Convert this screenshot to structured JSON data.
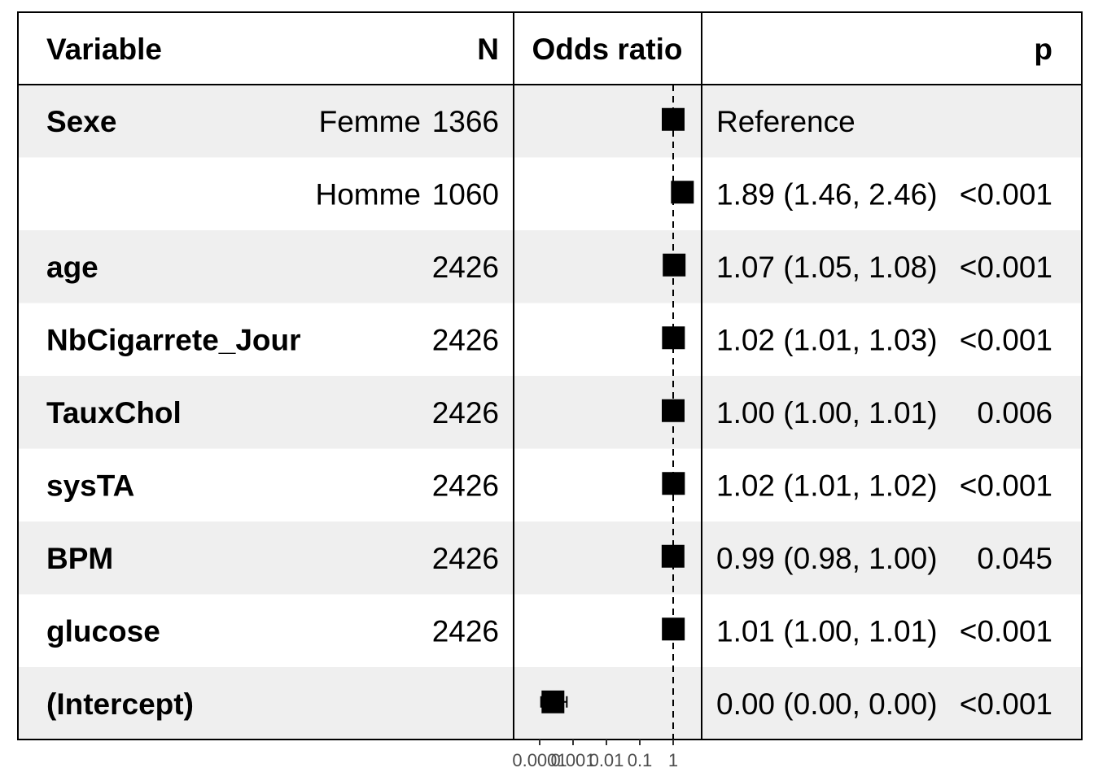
{
  "header": {
    "variable": "Variable",
    "n": "N",
    "odds_ratio": "Odds ratio",
    "p": "p"
  },
  "rows": [
    {
      "variable": "Sexe",
      "level": "Femme",
      "n": "1366",
      "ci_text": "Reference",
      "p": ""
    },
    {
      "variable": "",
      "level": "Homme",
      "n": "1060",
      "ci_text": "1.89 (1.46, 2.46)",
      "p": "<0.001"
    },
    {
      "variable": "age",
      "level": "",
      "n": "2426",
      "ci_text": "1.07 (1.05, 1.08)",
      "p": "<0.001"
    },
    {
      "variable": "NbCigarrete_Jour",
      "level": "",
      "n": "2426",
      "ci_text": "1.02 (1.01, 1.03)",
      "p": "<0.001"
    },
    {
      "variable": "TauxChol",
      "level": "",
      "n": "2426",
      "ci_text": "1.00 (1.00, 1.01)",
      "p": "0.006"
    },
    {
      "variable": "sysTA",
      "level": "",
      "n": "2426",
      "ci_text": "1.02 (1.01, 1.02)",
      "p": "<0.001"
    },
    {
      "variable": "BPM",
      "level": "",
      "n": "2426",
      "ci_text": "0.99 (0.98, 1.00)",
      "p": "0.045"
    },
    {
      "variable": "glucose",
      "level": "",
      "n": "2426",
      "ci_text": "1.01 (1.00, 1.01)",
      "p": "<0.001"
    },
    {
      "variable": "(Intercept)",
      "level": "",
      "n": "",
      "ci_text": "0.00 (0.00, 0.00)",
      "p": "<0.001"
    }
  ],
  "chart_data": {
    "type": "forest",
    "x_scale": "log10",
    "reference_line": 1,
    "x_ticks": [
      "0.0001",
      "0.001",
      "0.01",
      "0.1",
      "1"
    ],
    "points": [
      {
        "label": "Sexe: Femme",
        "estimate": 1,
        "lower": 1,
        "upper": 1
      },
      {
        "label": "Sexe: Homme",
        "estimate": 1.89,
        "lower": 1.46,
        "upper": 2.46
      },
      {
        "label": "age",
        "estimate": 1.07,
        "lower": 1.05,
        "upper": 1.08
      },
      {
        "label": "NbCigarrete_Jour",
        "estimate": 1.02,
        "lower": 1.01,
        "upper": 1.03
      },
      {
        "label": "TauxChol",
        "estimate": 1.0,
        "lower": 1.0,
        "upper": 1.01
      },
      {
        "label": "sysTA",
        "estimate": 1.02,
        "lower": 1.01,
        "upper": 1.02
      },
      {
        "label": "BPM",
        "estimate": 0.99,
        "lower": 0.98,
        "upper": 1.0
      },
      {
        "label": "glucose",
        "estimate": 1.01,
        "lower": 1.0,
        "upper": 1.01
      },
      {
        "label": "(Intercept)",
        "estimate": 0.00025,
        "lower": 0.00011,
        "upper": 0.00065
      }
    ],
    "colors": {
      "stripe": "#efefef",
      "marker": "#000000",
      "tick_text": "#4d4d4d"
    }
  }
}
